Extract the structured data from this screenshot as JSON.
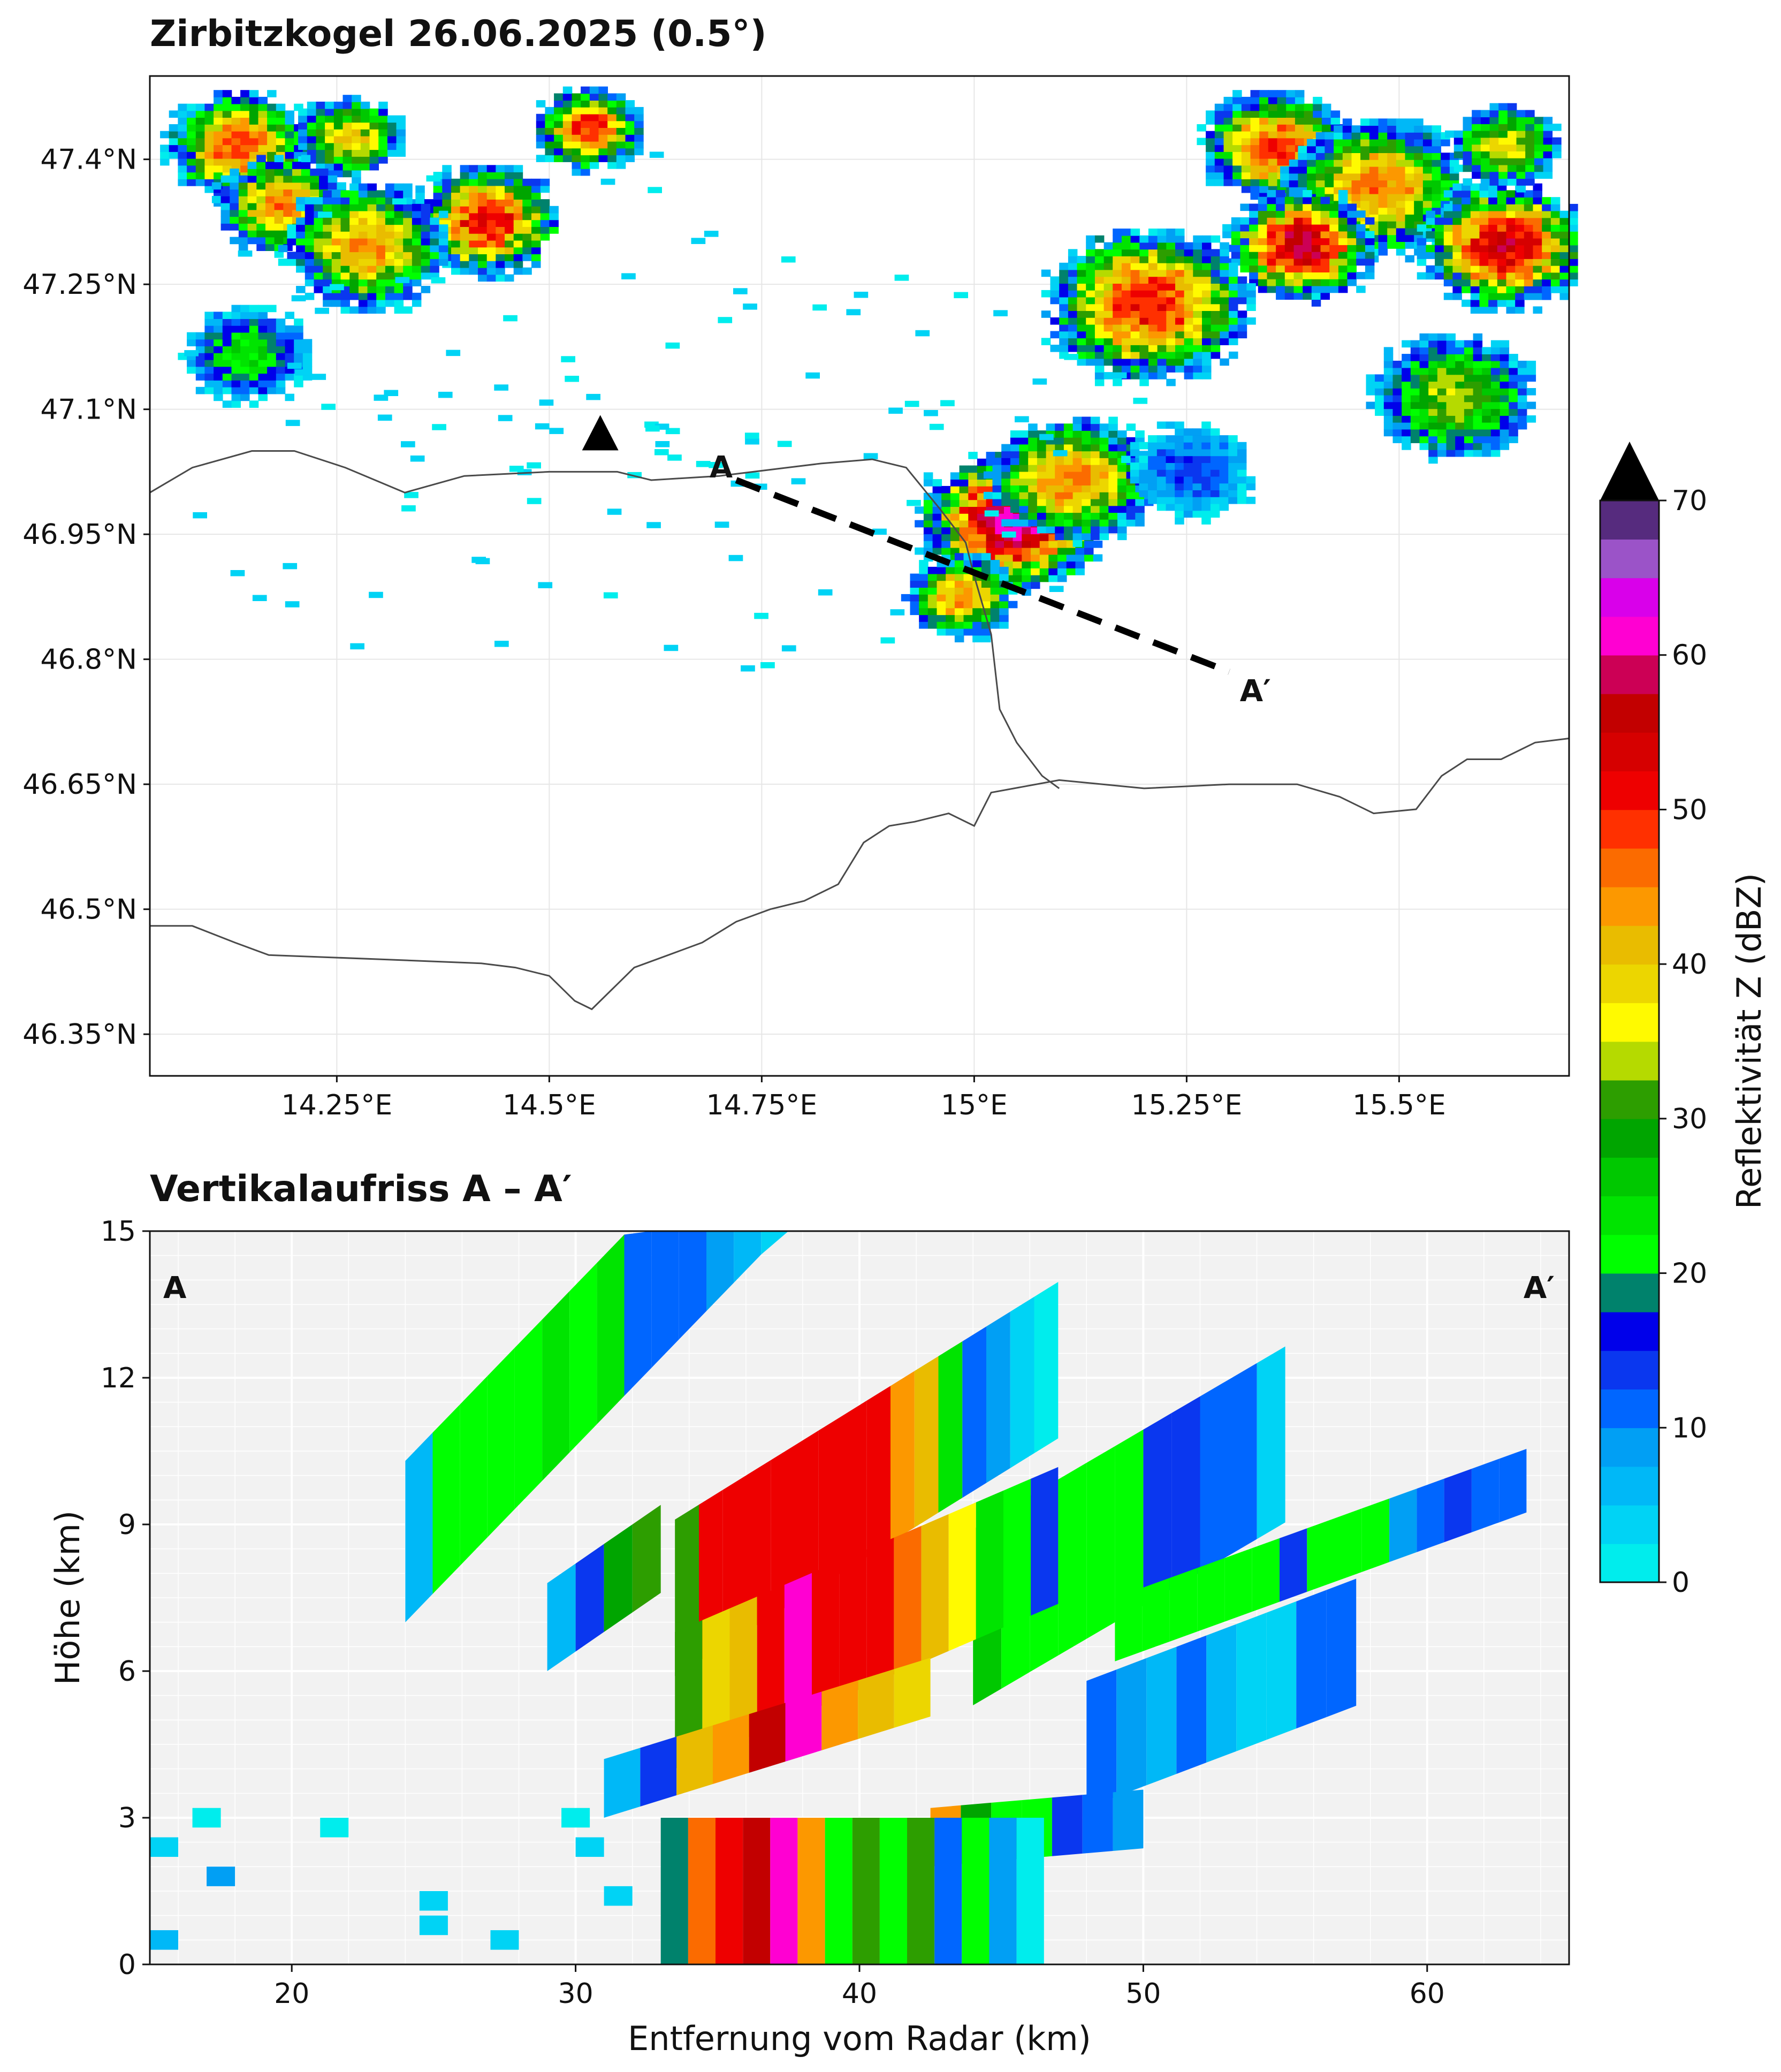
{
  "chart_data": [
    {
      "type": "heatmap",
      "title": "Zirbitzkogel 26.06.2025 (0.5°)",
      "xlabel": "",
      "ylabel": "",
      "xlim": [
        14.03,
        15.7
      ],
      "ylim": [
        46.3,
        47.5
      ],
      "x_ticks": [
        {
          "v": 14.25,
          "label": "14.25°E"
        },
        {
          "v": 14.5,
          "label": "14.5°E"
        },
        {
          "v": 14.75,
          "label": "14.75°E"
        },
        {
          "v": 15.0,
          "label": "15°E"
        },
        {
          "v": 15.25,
          "label": "15.25°E"
        },
        {
          "v": 15.5,
          "label": "15.5°E"
        }
      ],
      "y_ticks": [
        {
          "v": 47.4,
          "label": "47.4°N"
        },
        {
          "v": 47.25,
          "label": "47.25°N"
        },
        {
          "v": 47.1,
          "label": "47.1°N"
        },
        {
          "v": 46.95,
          "label": "46.95°N"
        },
        {
          "v": 46.8,
          "label": "46.8°N"
        },
        {
          "v": 46.65,
          "label": "46.65°N"
        },
        {
          "v": 46.5,
          "label": "46.5°N"
        },
        {
          "v": 46.35,
          "label": "46.35°N"
        }
      ],
      "radar_site": {
        "lon": 14.56,
        "lat": 47.07
      },
      "section": {
        "start": {
          "lon": 14.72,
          "lat": 47.015,
          "label": "A"
        },
        "end": {
          "lon": 15.3,
          "lat": 46.785,
          "label": "A′"
        }
      },
      "borders": [
        [
          [
            14.03,
            47.0
          ],
          [
            14.08,
            47.03
          ],
          [
            14.15,
            47.05
          ],
          [
            14.2,
            47.05
          ],
          [
            14.26,
            47.03
          ],
          [
            14.33,
            47.0
          ],
          [
            14.4,
            47.02
          ],
          [
            14.5,
            47.025
          ],
          [
            14.58,
            47.025
          ],
          [
            14.62,
            47.015
          ],
          [
            14.7,
            47.02
          ],
          [
            14.78,
            47.03
          ],
          [
            14.82,
            47.035
          ],
          [
            14.88,
            47.04
          ],
          [
            14.92,
            47.03
          ],
          [
            14.96,
            46.98
          ],
          [
            14.99,
            46.94
          ],
          [
            15.0,
            46.9
          ],
          [
            15.02,
            46.83
          ],
          [
            15.03,
            46.74
          ],
          [
            15.05,
            46.7
          ],
          [
            15.08,
            46.66
          ],
          [
            15.1,
            46.645
          ]
        ],
        [
          [
            14.03,
            46.48
          ],
          [
            14.08,
            46.48
          ],
          [
            14.13,
            46.46
          ],
          [
            14.17,
            46.445
          ],
          [
            14.3,
            46.44
          ],
          [
            14.42,
            46.435
          ],
          [
            14.46,
            46.43
          ],
          [
            14.5,
            46.42
          ],
          [
            14.53,
            46.39
          ],
          [
            14.55,
            46.38
          ],
          [
            14.58,
            46.41
          ],
          [
            14.6,
            46.43
          ],
          [
            14.64,
            46.445
          ],
          [
            14.68,
            46.46
          ],
          [
            14.72,
            46.485
          ],
          [
            14.76,
            46.5
          ],
          [
            14.8,
            46.51
          ],
          [
            14.84,
            46.53
          ],
          [
            14.87,
            46.58
          ],
          [
            14.9,
            46.6
          ],
          [
            14.93,
            46.605
          ],
          [
            14.97,
            46.615
          ],
          [
            15.0,
            46.6
          ],
          [
            15.02,
            46.64
          ],
          [
            15.1,
            46.655
          ],
          [
            15.2,
            46.645
          ],
          [
            15.3,
            46.65
          ],
          [
            15.38,
            46.65
          ],
          [
            15.43,
            46.635
          ],
          [
            15.47,
            46.615
          ],
          [
            15.52,
            46.62
          ],
          [
            15.55,
            46.66
          ],
          [
            15.58,
            46.68
          ],
          [
            15.62,
            46.68
          ],
          [
            15.66,
            46.7
          ],
          [
            15.7,
            46.705
          ]
        ]
      ],
      "cells": [
        {
          "lon": 14.13,
          "lat": 47.42,
          "r": 0.08,
          "peak": 48
        },
        {
          "lon": 14.26,
          "lat": 47.43,
          "r": 0.06,
          "peak": 40
        },
        {
          "lon": 14.18,
          "lat": 47.35,
          "r": 0.07,
          "peak": 46
        },
        {
          "lon": 14.42,
          "lat": 47.33,
          "r": 0.08,
          "peak": 52
        },
        {
          "lon": 14.28,
          "lat": 47.3,
          "r": 0.09,
          "peak": 44
        },
        {
          "lon": 14.54,
          "lat": 47.44,
          "r": 0.06,
          "peak": 50
        },
        {
          "lon": 14.14,
          "lat": 47.17,
          "r": 0.07,
          "peak": 24
        },
        {
          "lon": 15.35,
          "lat": 47.42,
          "r": 0.08,
          "peak": 50
        },
        {
          "lon": 15.47,
          "lat": 47.37,
          "r": 0.1,
          "peak": 46
        },
        {
          "lon": 15.38,
          "lat": 47.3,
          "r": 0.08,
          "peak": 58
        },
        {
          "lon": 15.62,
          "lat": 47.3,
          "r": 0.09,
          "peak": 56
        },
        {
          "lon": 15.62,
          "lat": 47.42,
          "r": 0.06,
          "peak": 38
        },
        {
          "lon": 15.2,
          "lat": 47.23,
          "r": 0.11,
          "peak": 52
        },
        {
          "lon": 15.56,
          "lat": 47.12,
          "r": 0.09,
          "peak": 34
        },
        {
          "lon": 15.04,
          "lat": 46.97,
          "r": 0.1,
          "peak": 62
        },
        {
          "lon": 15.11,
          "lat": 47.02,
          "r": 0.09,
          "peak": 46
        },
        {
          "lon": 14.98,
          "lat": 46.88,
          "r": 0.06,
          "peak": 44
        },
        {
          "lon": 15.25,
          "lat": 47.03,
          "r": 0.07,
          "peak": 14
        }
      ]
    },
    {
      "type": "heatmap",
      "title": "Vertikalaufriss A – A′",
      "xlabel": "Entfernung vom Radar (km)",
      "ylabel": "Höhe (km)",
      "xlim": [
        15,
        65
      ],
      "ylim": [
        0,
        15
      ],
      "x_ticks": [
        20,
        30,
        40,
        50,
        60
      ],
      "y_ticks": [
        0,
        3,
        6,
        9,
        12,
        15
      ],
      "grid": true,
      "label_left": "A",
      "label_right": "A′",
      "beams": [
        {
          "x0": 24.0,
          "x1": 37.5,
          "ylow": 7.0,
          "yhigh": 10.3,
          "slope": 0.6,
          "values": [
            6,
            20,
            20,
            20,
            20,
            24,
            20,
            24,
            12,
            10,
            10,
            8,
            6,
            4
          ]
        },
        {
          "x0": 33.5,
          "x1": 47.0,
          "ylow": 5.9,
          "yhigh": 9.1,
          "slope": 0.36,
          "values": [
            30,
            52,
            52,
            52,
            52,
            52,
            50,
            50,
            50,
            44,
            40,
            24,
            10,
            8,
            4,
            2
          ]
        },
        {
          "x0": 44.0,
          "x1": 55.0,
          "ylow": 5.3,
          "yhigh": 8.9,
          "slope": 0.34,
          "values": [
            26,
            20,
            20,
            20,
            20,
            22,
            14,
            14,
            10,
            10,
            4
          ]
        },
        {
          "x0": 49.0,
          "x1": 63.5,
          "ylow": 6.2,
          "yhigh": 7.5,
          "slope": 0.21,
          "values": [
            20,
            20,
            22,
            20,
            20,
            20,
            14,
            20,
            20,
            20,
            8,
            10,
            14,
            10,
            10
          ]
        },
        {
          "x0": 29.0,
          "x1": 33.0,
          "ylow": 6.0,
          "yhigh": 7.8,
          "slope": 0.4,
          "values": [
            6,
            14,
            28,
            30
          ]
        },
        {
          "x0": 33.5,
          "x1": 47.0,
          "ylow": 4.0,
          "yhigh": 6.8,
          "slope": 0.25,
          "values": [
            30,
            38,
            40,
            52,
            60,
            52,
            52,
            50,
            46,
            40,
            36,
            24,
            20,
            14
          ]
        },
        {
          "x0": 48.0,
          "x1": 57.5,
          "ylow": 3.2,
          "yhigh": 5.8,
          "slope": 0.22,
          "values": [
            10,
            8,
            6,
            10,
            6,
            4,
            4,
            10,
            10
          ]
        },
        {
          "x0": 31.0,
          "x1": 42.5,
          "ylow": 3.0,
          "yhigh": 4.2,
          "slope": 0.18,
          "values": [
            6,
            14,
            40,
            44,
            56,
            62,
            44,
            40,
            38
          ]
        },
        {
          "x0": 42.5,
          "x1": 50.0,
          "ylow": 2.0,
          "yhigh": 3.2,
          "slope": 0.05,
          "values": [
            44,
            28,
            22,
            20,
            14,
            12,
            8
          ]
        },
        {
          "x0": 33.0,
          "x1": 46.5,
          "ylow": 0.0,
          "yhigh": 3.0,
          "slope": 0.0,
          "values": [
            18,
            46,
            50,
            56,
            62,
            44,
            20,
            30,
            20,
            32,
            12,
            20,
            8,
            2
          ]
        }
      ],
      "specks": [
        {
          "x": 15.5,
          "y": 2.4,
          "z": 4
        },
        {
          "x": 17.0,
          "y": 3.0,
          "z": 2
        },
        {
          "x": 17.5,
          "y": 1.8,
          "z": 8
        },
        {
          "x": 21.5,
          "y": 2.8,
          "z": 2
        },
        {
          "x": 25.0,
          "y": 1.3,
          "z": 4
        },
        {
          "x": 30.0,
          "y": 3.0,
          "z": 2
        },
        {
          "x": 30.5,
          "y": 2.4,
          "z": 4
        },
        {
          "x": 31.5,
          "y": 1.4,
          "z": 4
        },
        {
          "x": 15.5,
          "y": 0.5,
          "z": 6
        },
        {
          "x": 25.0,
          "y": 0.8,
          "z": 4
        },
        {
          "x": 27.5,
          "y": 0.5,
          "z": 4
        }
      ]
    }
  ],
  "colorbar": {
    "label": "Reflektivität  Z  (dBZ)",
    "min": 0,
    "max": 70,
    "extend": "max",
    "ticks": [
      0,
      10,
      20,
      30,
      40,
      50,
      60,
      70
    ],
    "colors": [
      "#00eded",
      "#00d3f5",
      "#00b8f7",
      "#019ff4",
      "#0066ff",
      "#0a37ef",
      "#0000ea",
      "#00826c",
      "#00ff00",
      "#00e400",
      "#00c800",
      "#00a500",
      "#2d9e00",
      "#b5da00",
      "#fffa00",
      "#ecd600",
      "#e9bc00",
      "#fc9800",
      "#fb6b00",
      "#ff3000",
      "#ee0000",
      "#d60000",
      "#c20000",
      "#cc0055",
      "#ff00d2",
      "#d900ea",
      "#9b53c8",
      "#562b7e"
    ]
  }
}
